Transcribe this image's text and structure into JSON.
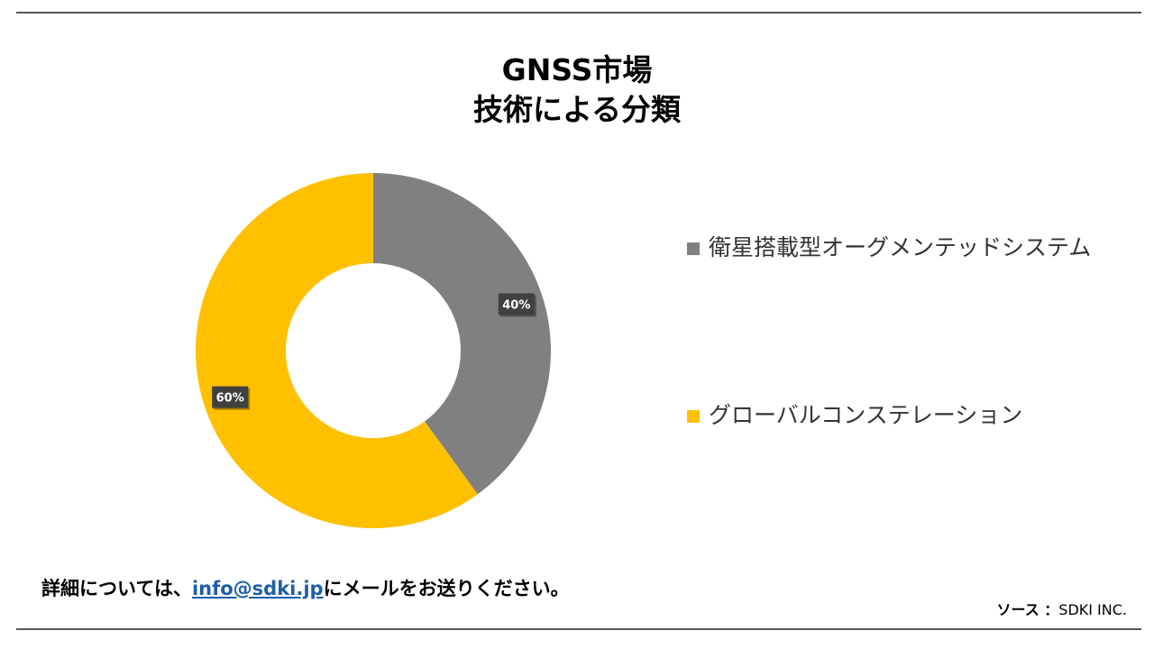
{
  "header": {
    "title_line1": "GNSS市場",
    "title_line2": "技術による分類"
  },
  "chart_data": {
    "type": "pie",
    "variant": "donut",
    "title": "GNSS市場 技術による分類",
    "categories": [
      "衛星搭載型オーグメンテッドシステム",
      "グローバルコンステレーション"
    ],
    "values": [
      40,
      60
    ],
    "labels": [
      "40%",
      "60%"
    ],
    "colors": [
      "#808080",
      "#FFC000"
    ],
    "legend_position": "right"
  },
  "footer": {
    "note_prefix": "詳細については、",
    "email": "info@sdki.jp",
    "note_suffix": "にメールをお送りください。",
    "source_label": "ソース ：",
    "source_value": "SDKI INC."
  },
  "colors": {
    "rule": "#595959",
    "link": "#1F5FA8"
  }
}
